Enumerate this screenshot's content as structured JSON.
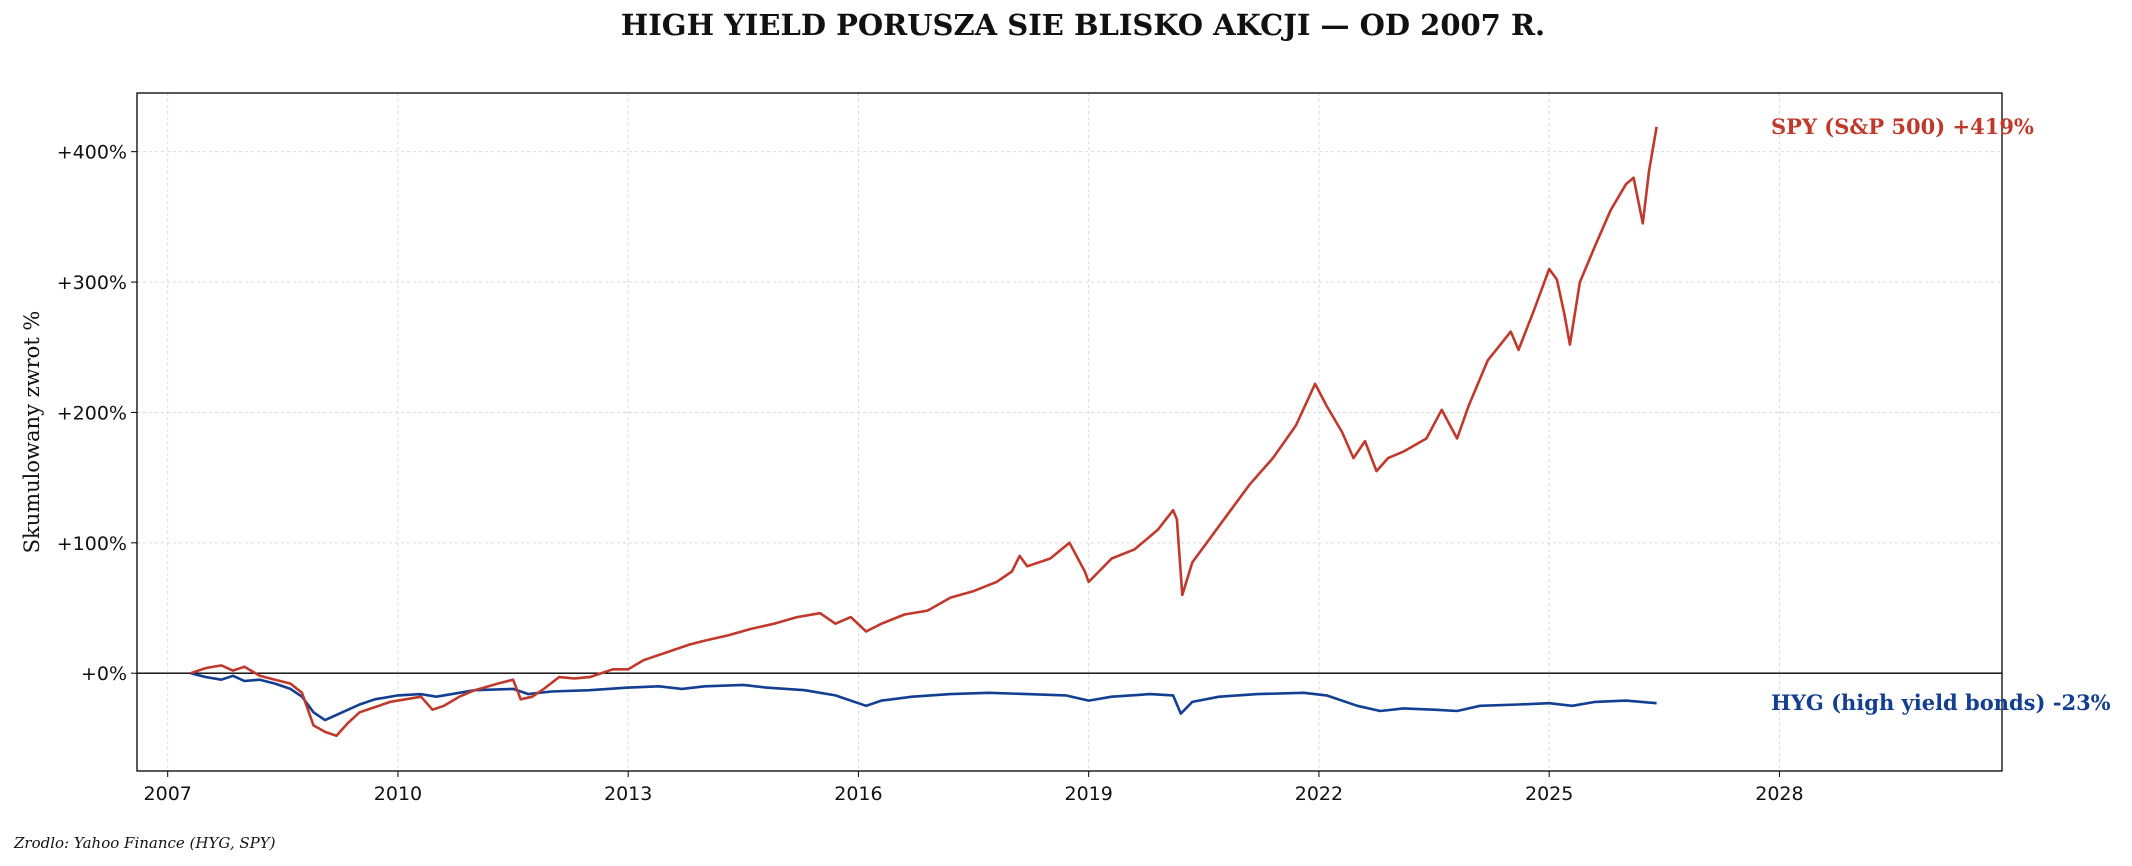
{
  "chart_data": {
    "type": "line",
    "title": "HIGH YIELD PORUSZA SIE BLISKO AKCJI — OD 2007 R.",
    "ylabel": "Skumulowany zwrot %",
    "xlabel": "",
    "source": "Zrodlo: Yahoo Finance (HYG, SPY)",
    "xlim": [
      2006.6,
      2030.9
    ],
    "ylim": [
      -75,
      445
    ],
    "x_ticks": [
      2007,
      2010,
      2013,
      2016,
      2019,
      2022,
      2025,
      2028
    ],
    "x_tick_labels": [
      "2007",
      "2010",
      "2013",
      "2016",
      "2019",
      "2022",
      "2025",
      "2028"
    ],
    "y_ticks": [
      0,
      100,
      200,
      300,
      400
    ],
    "y_tick_labels": [
      "+0%",
      "+100%",
      "+200%",
      "+300%",
      "+400%"
    ],
    "grid": true,
    "zero_line": true,
    "series": [
      {
        "name": "SPY (S&P 500)",
        "end_label": "SPY (S&P 500)  +419%",
        "color": "#c0392b",
        "points": [
          [
            2007.3,
            0
          ],
          [
            2007.5,
            4
          ],
          [
            2007.7,
            6
          ],
          [
            2007.85,
            2
          ],
          [
            2008.0,
            5
          ],
          [
            2008.2,
            -2
          ],
          [
            2008.4,
            -5
          ],
          [
            2008.6,
            -8
          ],
          [
            2008.75,
            -15
          ],
          [
            2008.9,
            -40
          ],
          [
            2009.05,
            -45
          ],
          [
            2009.2,
            -48
          ],
          [
            2009.35,
            -38
          ],
          [
            2009.5,
            -30
          ],
          [
            2009.7,
            -26
          ],
          [
            2009.9,
            -22
          ],
          [
            2010.1,
            -20
          ],
          [
            2010.3,
            -18
          ],
          [
            2010.45,
            -28
          ],
          [
            2010.6,
            -25
          ],
          [
            2010.8,
            -18
          ],
          [
            2011.0,
            -13
          ],
          [
            2011.3,
            -8
          ],
          [
            2011.5,
            -5
          ],
          [
            2011.6,
            -20
          ],
          [
            2011.75,
            -18
          ],
          [
            2011.9,
            -12
          ],
          [
            2012.1,
            -3
          ],
          [
            2012.3,
            -4
          ],
          [
            2012.5,
            -3
          ],
          [
            2012.8,
            3
          ],
          [
            2013.0,
            3
          ],
          [
            2013.2,
            10
          ],
          [
            2013.5,
            16
          ],
          [
            2013.8,
            22
          ],
          [
            2014.0,
            25
          ],
          [
            2014.3,
            29
          ],
          [
            2014.6,
            34
          ],
          [
            2014.9,
            38
          ],
          [
            2015.2,
            43
          ],
          [
            2015.5,
            46
          ],
          [
            2015.7,
            38
          ],
          [
            2015.9,
            43
          ],
          [
            2016.1,
            32
          ],
          [
            2016.3,
            38
          ],
          [
            2016.6,
            45
          ],
          [
            2016.9,
            48
          ],
          [
            2017.2,
            58
          ],
          [
            2017.5,
            63
          ],
          [
            2017.8,
            70
          ],
          [
            2018.0,
            78
          ],
          [
            2018.1,
            90
          ],
          [
            2018.2,
            82
          ],
          [
            2018.5,
            88
          ],
          [
            2018.75,
            100
          ],
          [
            2018.95,
            78
          ],
          [
            2019.0,
            70
          ],
          [
            2019.3,
            88
          ],
          [
            2019.6,
            95
          ],
          [
            2019.9,
            110
          ],
          [
            2020.1,
            125
          ],
          [
            2020.15,
            118
          ],
          [
            2020.22,
            60
          ],
          [
            2020.35,
            85
          ],
          [
            2020.6,
            105
          ],
          [
            2020.85,
            125
          ],
          [
            2021.1,
            145
          ],
          [
            2021.4,
            165
          ],
          [
            2021.7,
            190
          ],
          [
            2021.95,
            222
          ],
          [
            2022.1,
            205
          ],
          [
            2022.3,
            185
          ],
          [
            2022.45,
            165
          ],
          [
            2022.6,
            178
          ],
          [
            2022.75,
            155
          ],
          [
            2022.9,
            165
          ],
          [
            2023.1,
            170
          ],
          [
            2023.4,
            180
          ],
          [
            2023.6,
            202
          ],
          [
            2023.8,
            180
          ],
          [
            2023.95,
            205
          ],
          [
            2024.2,
            240
          ],
          [
            2024.5,
            262
          ],
          [
            2024.6,
            248
          ],
          [
            2024.8,
            278
          ],
          [
            2025.0,
            310
          ],
          [
            2025.1,
            302
          ],
          [
            2025.2,
            275
          ],
          [
            2025.27,
            252
          ],
          [
            2025.4,
            300
          ],
          [
            2025.6,
            328
          ],
          [
            2025.8,
            355
          ],
          [
            2026.0,
            375
          ],
          [
            2026.1,
            380
          ],
          [
            2026.22,
            345
          ],
          [
            2026.3,
            385
          ],
          [
            2026.4,
            419
          ]
        ]
      },
      {
        "name": "HYG (high yield bonds)",
        "end_label": "HYG (high yield bonds)  -23%",
        "color": "#123f91",
        "points": [
          [
            2007.3,
            0
          ],
          [
            2007.5,
            -3
          ],
          [
            2007.7,
            -5
          ],
          [
            2007.85,
            -2
          ],
          [
            2008.0,
            -6
          ],
          [
            2008.2,
            -5
          ],
          [
            2008.4,
            -8
          ],
          [
            2008.6,
            -12
          ],
          [
            2008.75,
            -18
          ],
          [
            2008.9,
            -30
          ],
          [
            2009.05,
            -36
          ],
          [
            2009.2,
            -32
          ],
          [
            2009.35,
            -28
          ],
          [
            2009.5,
            -24
          ],
          [
            2009.7,
            -20
          ],
          [
            2010.0,
            -17
          ],
          [
            2010.3,
            -16
          ],
          [
            2010.5,
            -18
          ],
          [
            2010.8,
            -15
          ],
          [
            2011.0,
            -13
          ],
          [
            2011.5,
            -12
          ],
          [
            2011.7,
            -16
          ],
          [
            2012.0,
            -14
          ],
          [
            2012.5,
            -13
          ],
          [
            2013.0,
            -11
          ],
          [
            2013.4,
            -10
          ],
          [
            2013.7,
            -12
          ],
          [
            2014.0,
            -10
          ],
          [
            2014.5,
            -9
          ],
          [
            2014.8,
            -11
          ],
          [
            2015.3,
            -13
          ],
          [
            2015.7,
            -17
          ],
          [
            2016.1,
            -25
          ],
          [
            2016.3,
            -21
          ],
          [
            2016.7,
            -18
          ],
          [
            2017.2,
            -16
          ],
          [
            2017.7,
            -15
          ],
          [
            2018.2,
            -16
          ],
          [
            2018.7,
            -17
          ],
          [
            2019.0,
            -21
          ],
          [
            2019.3,
            -18
          ],
          [
            2019.8,
            -16
          ],
          [
            2020.1,
            -17
          ],
          [
            2020.2,
            -31
          ],
          [
            2020.35,
            -22
          ],
          [
            2020.7,
            -18
          ],
          [
            2021.2,
            -16
          ],
          [
            2021.8,
            -15
          ],
          [
            2022.1,
            -17
          ],
          [
            2022.5,
            -25
          ],
          [
            2022.8,
            -29
          ],
          [
            2023.1,
            -27
          ],
          [
            2023.5,
            -28
          ],
          [
            2023.8,
            -29
          ],
          [
            2024.1,
            -25
          ],
          [
            2024.6,
            -24
          ],
          [
            2025.0,
            -23
          ],
          [
            2025.3,
            -25
          ],
          [
            2025.6,
            -22
          ],
          [
            2026.0,
            -21
          ],
          [
            2026.4,
            -23
          ]
        ]
      }
    ]
  }
}
